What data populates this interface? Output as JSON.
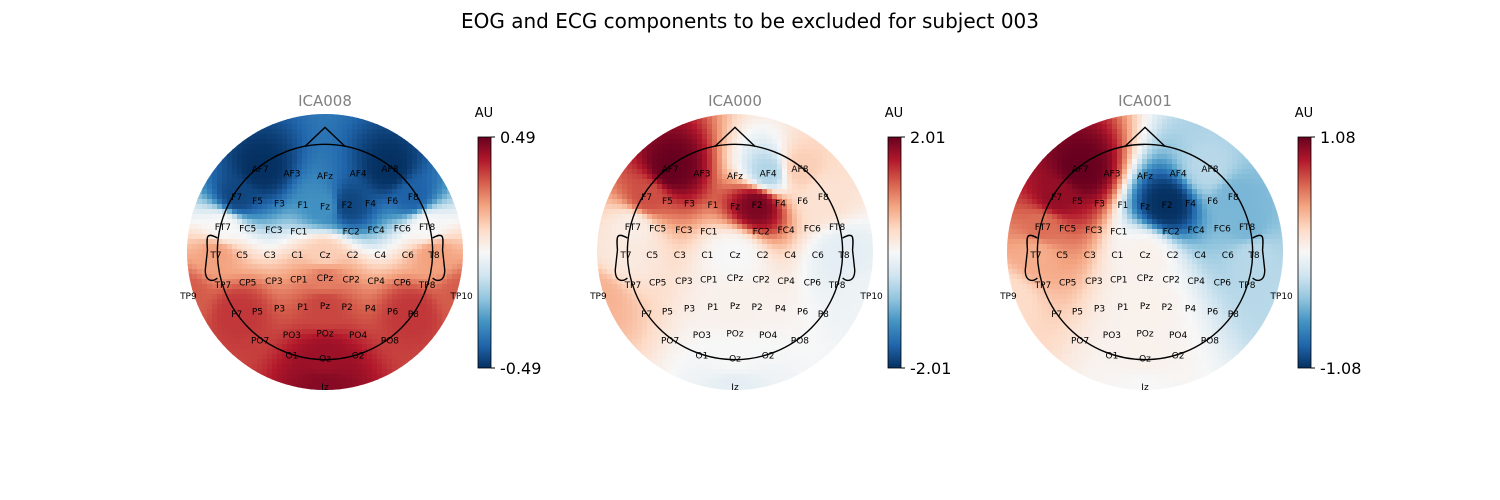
{
  "title": "EOG and ECG components to be excluded for subject 003",
  "chart_data": [
    {
      "type": "heatmap",
      "subtitle": "ICA008",
      "colorbar": {
        "unit": "AU",
        "max_label": "0.49",
        "min_label": "-0.49",
        "max": 0.49,
        "min": -0.49,
        "colormap": "RdBu_r"
      },
      "sources": [
        {
          "ch": "F7",
          "v": -0.45
        },
        {
          "ch": "AF7",
          "v": -0.49
        },
        {
          "ch": "AF8",
          "v": -0.49
        },
        {
          "ch": "F2",
          "v": -0.45
        },
        {
          "ch": "F8",
          "v": -0.4
        },
        {
          "ch": "Fz",
          "v": -0.3
        },
        {
          "ch": "FT7",
          "v": 0.0
        },
        {
          "ch": "FT8",
          "v": 0.0
        },
        {
          "ch": "Cz",
          "v": 0.12
        },
        {
          "ch": "T7",
          "v": 0.2
        },
        {
          "ch": "T8",
          "v": 0.2
        },
        {
          "ch": "CPz",
          "v": 0.25
        },
        {
          "ch": "Pz",
          "v": 0.33
        },
        {
          "ch": "P7",
          "v": 0.35
        },
        {
          "ch": "P8",
          "v": 0.35
        },
        {
          "ch": "Oz",
          "v": 0.42
        },
        {
          "ch": "Iz",
          "v": 0.45
        },
        {
          "ch": "TP9",
          "v": 0.3
        },
        {
          "ch": "TP10",
          "v": 0.3
        }
      ]
    },
    {
      "type": "heatmap",
      "subtitle": "ICA000",
      "colorbar": {
        "unit": "AU",
        "max_label": "2.01",
        "min_label": "-2.01",
        "max": 2.01,
        "min": -2.01,
        "colormap": "RdBu_r"
      },
      "sources": [
        {
          "ch": "AF7",
          "v": 2.01
        },
        {
          "ch": "F7",
          "v": 1.3
        },
        {
          "ch": "F2",
          "v": 1.9
        },
        {
          "ch": "AF4",
          "v": -0.6
        },
        {
          "ch": "AF8",
          "v": 0.5
        },
        {
          "ch": "F8",
          "v": 0.3
        },
        {
          "ch": "FT7",
          "v": 0.15
        },
        {
          "ch": "T7",
          "v": 0.2
        },
        {
          "ch": "TP9",
          "v": 0.7
        },
        {
          "ch": "T8",
          "v": -0.2
        },
        {
          "ch": "Cz",
          "v": 0.0
        },
        {
          "ch": "Pz",
          "v": 0.1
        },
        {
          "ch": "Oz",
          "v": 0.0
        },
        {
          "ch": "Iz",
          "v": -0.2
        },
        {
          "ch": "TP10",
          "v": -0.1
        }
      ]
    },
    {
      "type": "heatmap",
      "subtitle": "ICA001",
      "colorbar": {
        "unit": "AU",
        "max_label": "1.08",
        "min_label": "-1.08",
        "max": 1.08,
        "min": -1.08,
        "colormap": "RdBu_r"
      },
      "sources": [
        {
          "ch": "AF7",
          "v": 1.08
        },
        {
          "ch": "F7",
          "v": 0.95
        },
        {
          "ch": "FT7",
          "v": 0.6
        },
        {
          "ch": "T7",
          "v": 0.4
        },
        {
          "ch": "TP9",
          "v": 0.2
        },
        {
          "ch": "F2",
          "v": -1.08
        },
        {
          "ch": "F8",
          "v": -0.5
        },
        {
          "ch": "FT8",
          "v": -0.5
        },
        {
          "ch": "AF8",
          "v": -0.3
        },
        {
          "ch": "T8",
          "v": -0.3
        },
        {
          "ch": "TP10",
          "v": -0.3
        },
        {
          "ch": "Cz",
          "v": 0.05
        },
        {
          "ch": "Pz",
          "v": 0.05
        },
        {
          "ch": "Oz",
          "v": 0.05
        },
        {
          "ch": "Iz",
          "v": 0.0
        }
      ]
    }
  ],
  "channels": [
    "AF7",
    "AF3",
    "AFz",
    "AF4",
    "AF8",
    "F7",
    "F5",
    "F3",
    "F1",
    "Fz",
    "F2",
    "F4",
    "F6",
    "F8",
    "FT7",
    "FC5",
    "FC3",
    "FC1",
    "FC2",
    "FC4",
    "FC6",
    "FT8",
    "T7",
    "C5",
    "C3",
    "C1",
    "Cz",
    "C2",
    "C4",
    "C6",
    "T8",
    "TP9",
    "TP7",
    "CP5",
    "CP3",
    "CP1",
    "CPz",
    "CP2",
    "CP4",
    "CP6",
    "TP8",
    "TP10",
    "P7",
    "P5",
    "P3",
    "P1",
    "Pz",
    "P2",
    "P4",
    "P6",
    "P8",
    "PO7",
    "PO3",
    "POz",
    "PO4",
    "PO8",
    "O1",
    "Oz",
    "O2",
    "Iz"
  ]
}
